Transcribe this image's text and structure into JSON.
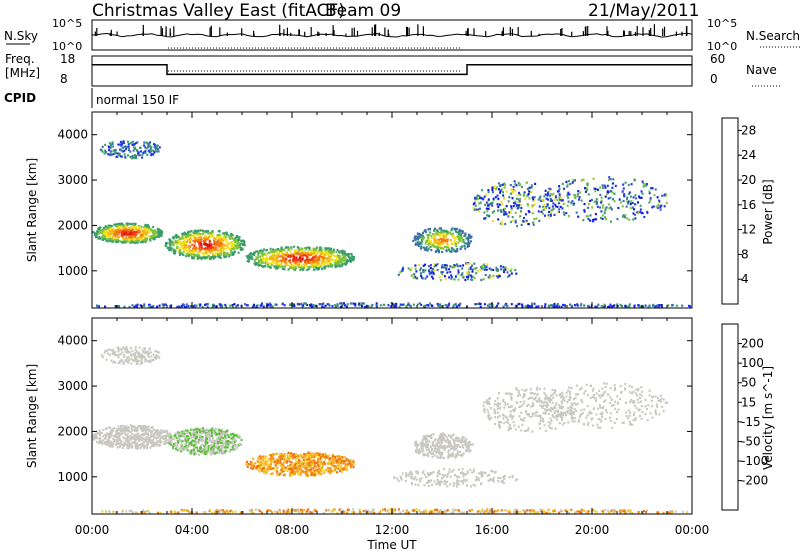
{
  "header": {
    "title": "Christmas Valley East (fitACF)",
    "beam": "Beam 09",
    "date": "21/May/2011"
  },
  "strip_labels": {
    "nsky": "N.Sky",
    "nsky_ticks": [
      "10^5",
      "10^0"
    ],
    "nsearch": "N.Search",
    "nsearch_ticks": [
      "10^5",
      "10^0"
    ],
    "freq_line1": "Freq.",
    "freq_line2": "[MHz]",
    "freq_ticks": [
      "18",
      "8"
    ],
    "nave": "Nave",
    "nave_ticks": [
      "60",
      "0"
    ],
    "cpid": "CPID",
    "cpid_value": "normal 150 IF"
  },
  "chart_data": [
    {
      "type": "heatmap",
      "name_printed": "Power",
      "ylabel": "Slant Range [km]",
      "xlabel": "",
      "xlim": [
        "00:00",
        "24:00"
      ],
      "ylim": [
        180,
        4500
      ],
      "y_ticks": [
        1000,
        2000,
        3000,
        4000
      ],
      "colorbar": {
        "label": "Power [dB]",
        "ticks": [
          "4",
          "8",
          "12",
          "16",
          "20",
          "24",
          "28"
        ],
        "colors": [
          "#0a1ad8",
          "#2030f0",
          "#3a6ea8",
          "#3b9e6a",
          "#7ec23c",
          "#f0e020",
          "#f5b510",
          "#f07a10",
          "#ee3a10",
          "#e00a0a"
        ]
      }
    },
    {
      "type": "heatmap",
      "name_printed": "Velocity",
      "ylabel": "Slant Range [km]",
      "xlabel": "Time UT",
      "xlim": [
        "00:00",
        "24:00"
      ],
      "ylim": [
        180,
        4500
      ],
      "x_ticks": [
        "00:00",
        "04:00",
        "08:00",
        "12:00",
        "16:00",
        "20:00",
        "00:00"
      ],
      "y_ticks": [
        1000,
        2000,
        3000,
        4000
      ],
      "colorbar": {
        "label": "Velocity [m s^-1]",
        "ticks": [
          "200",
          "100",
          "50",
          "15",
          "-15",
          "-50",
          "-100",
          "-200"
        ],
        "colors": [
          "#1020d0",
          "#2f5fc0",
          "#338a6a",
          "#5ebd3c",
          "#9cd84e",
          "#c8c8c0",
          "#f2d23a",
          "#f5a520",
          "#f07010",
          "#ec3010",
          "#dd0808"
        ]
      }
    }
  ],
  "frequency_trace_mhz": [
    {
      "from": "00:00",
      "to": "03:00",
      "value": 16
    },
    {
      "from": "03:00",
      "to": "15:00",
      "value": 12
    },
    {
      "from": "15:00",
      "to": "24:00",
      "value": 16
    }
  ]
}
